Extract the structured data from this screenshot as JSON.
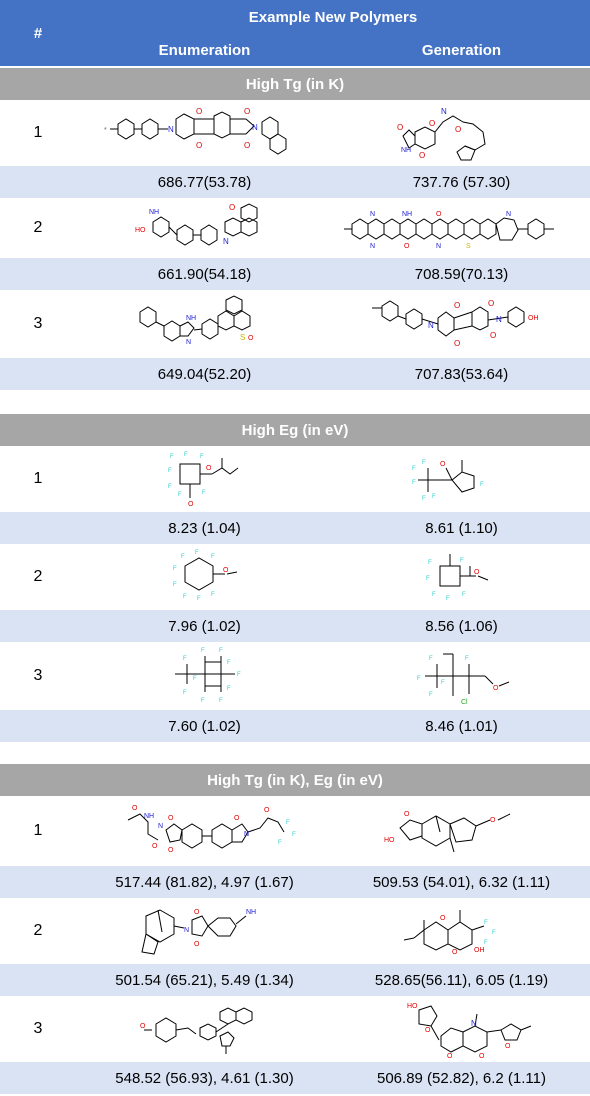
{
  "header": {
    "num_label": "#",
    "title": "Example New Polymers",
    "col_enum": "Enumeration",
    "col_gen": "Generation"
  },
  "sections": [
    {
      "title": "High Tg (in K)",
      "rows": [
        {
          "num": "1",
          "enum_value": "686.77(53.78)",
          "gen_value": "737.76 (57.30)"
        },
        {
          "num": "2",
          "enum_value": "661.90(54.18)",
          "gen_value": "708.59(70.13)"
        },
        {
          "num": "3",
          "enum_value": "649.04(52.20)",
          "gen_value": "707.83(53.64)"
        }
      ]
    },
    {
      "title": "High Eg (in eV)",
      "rows": [
        {
          "num": "1",
          "enum_value": "8.23 (1.04)",
          "gen_value": "8.61 (1.10)"
        },
        {
          "num": "2",
          "enum_value": "7.96 (1.02)",
          "gen_value": "8.56 (1.06)"
        },
        {
          "num": "3",
          "enum_value": "7.60 (1.02)",
          "gen_value": "8.46 (1.01)"
        }
      ]
    },
    {
      "title": "High Tg (in K), Eg (in eV)",
      "rows": [
        {
          "num": "1",
          "enum_value": "517.44 (81.82), 4.97 (1.67)",
          "gen_value": "509.53 (54.01), 6.32 (1.11)"
        },
        {
          "num": "2",
          "enum_value": "501.54 (65.21), 5.49 (1.34)",
          "gen_value": "528.65(56.11), 6.05 (1.19)"
        },
        {
          "num": "3",
          "enum_value": "548.52 (56.93), 4.61 (1.30)",
          "gen_value": "506.89 (52.82), 6.2 (1.11)"
        }
      ]
    }
  ],
  "atom_labels": {
    "O": "O",
    "N": "N",
    "NH": "NH",
    "NH2": "NH",
    "HO": "HO",
    "OH": "OH",
    "F": "F",
    "S": "S",
    "Cl": "Cl",
    "star": "*"
  },
  "colors": {
    "header_bg": "#4472c4",
    "section_bg": "#a6a6a6",
    "value_row_bg": "#dae3f3",
    "oxygen": "#e00000",
    "nitrogen": "#2020d0",
    "fluorine": "#33cccc",
    "sulfur": "#c8b400",
    "chlorine": "#22aa22"
  }
}
